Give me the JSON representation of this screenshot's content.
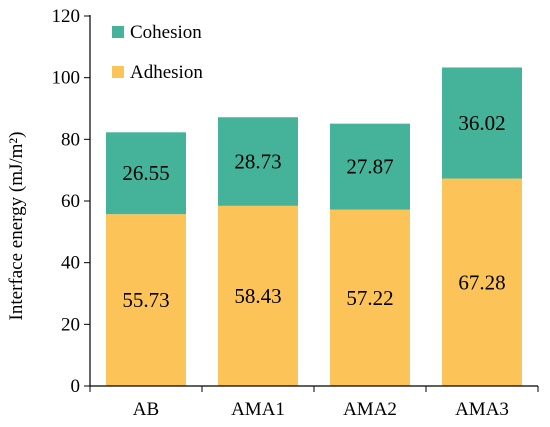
{
  "chart_data": {
    "type": "bar",
    "stacked": true,
    "categories": [
      "AB",
      "AMA1",
      "AMA2",
      "AMA3"
    ],
    "series": [
      {
        "name": "Adhesion",
        "color": "#FCC359",
        "values": [
          55.73,
          58.43,
          57.22,
          67.28
        ]
      },
      {
        "name": "Cohesion",
        "color": "#45B39A",
        "values": [
          26.55,
          28.73,
          27.87,
          36.02
        ]
      }
    ],
    "ylabel": "Interface energy (mJ/m²)",
    "xlabel": "",
    "ylim": [
      0,
      120
    ],
    "yticks": [
      0,
      20,
      40,
      60,
      80,
      100,
      120
    ],
    "legend": {
      "position": "top-left",
      "order": [
        "Cohesion",
        "Adhesion"
      ]
    },
    "grid": false,
    "data_labels": true
  }
}
